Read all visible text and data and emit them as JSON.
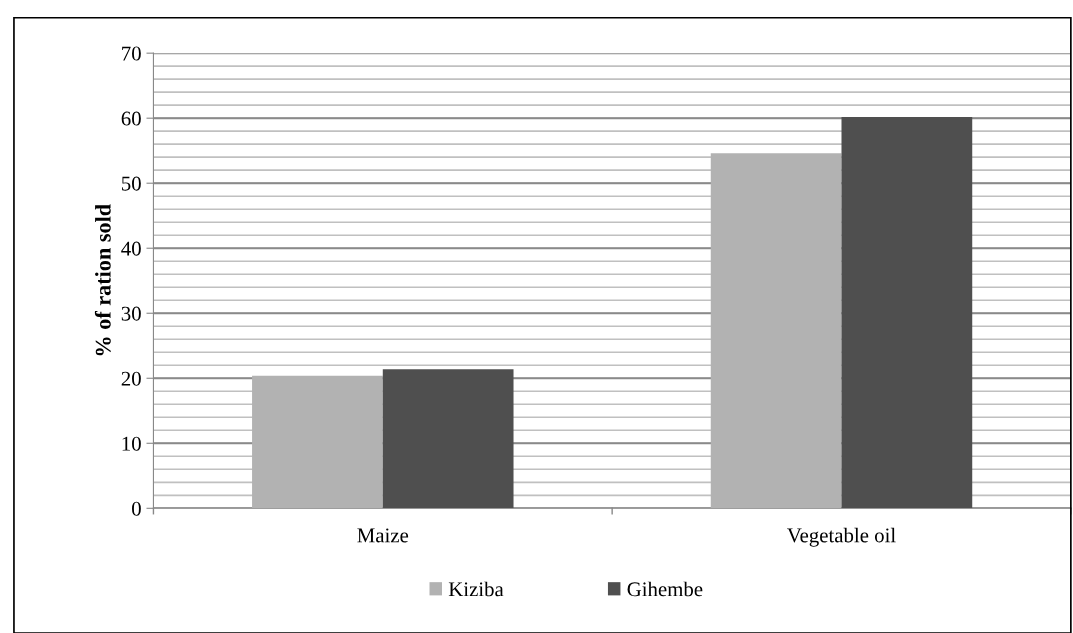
{
  "chart_data": {
    "type": "bar",
    "ylabel": "% of ration sold",
    "categories": [
      "Maize",
      "Vegetable oil"
    ],
    "series": [
      {
        "name": "Kiziba",
        "color": "#b2b2b2",
        "values": [
          20.4,
          54.6
        ]
      },
      {
        "name": "Gihembe",
        "color": "#4f4f4f",
        "values": [
          21.4,
          60.2
        ]
      }
    ],
    "ylim": [
      0,
      70
    ],
    "yticks": [
      0,
      10,
      20,
      30,
      40,
      50,
      60,
      70
    ],
    "grid": "y",
    "legend": "bottom"
  }
}
